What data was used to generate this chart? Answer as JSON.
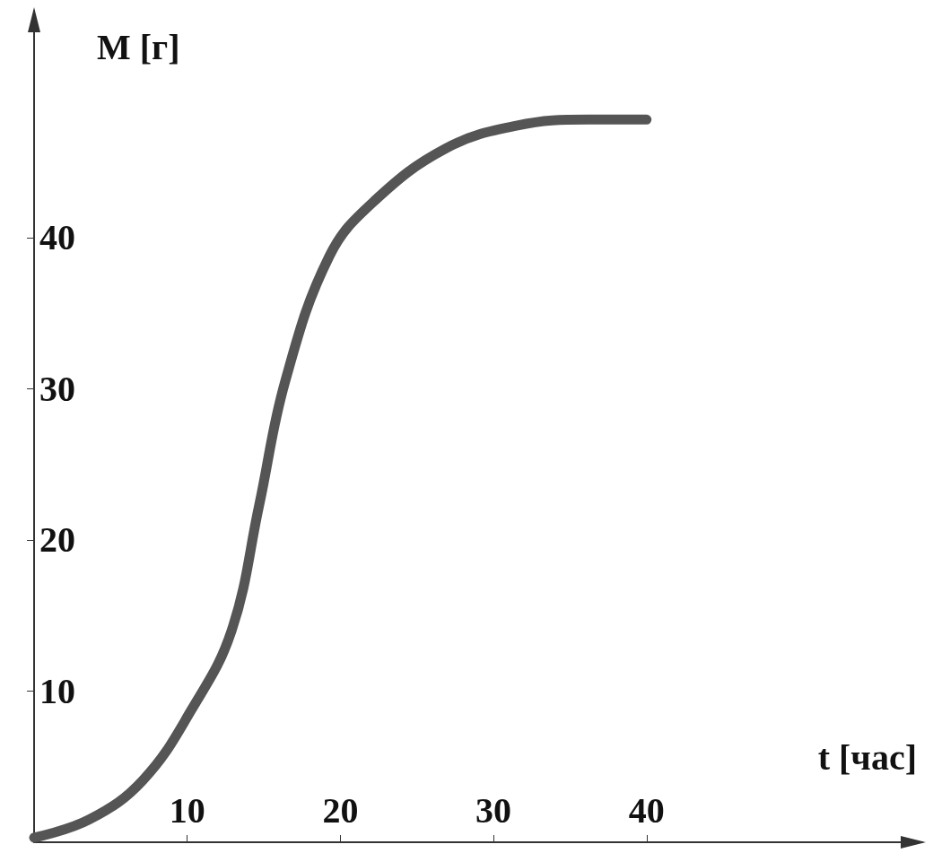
{
  "chart_data": {
    "type": "line",
    "xlabel": "t [час]",
    "ylabel": "M [г]",
    "x": [
      0,
      3.6,
      7.1,
      10.3,
      12.9,
      14.7,
      16.4,
      19.3,
      22.2,
      26.9,
      31.5,
      36.2,
      40
    ],
    "series": [
      {
        "color": "#555555",
        "values": [
          0.3,
          1.5,
          4.1,
          8.8,
          14,
          22.3,
          30.5,
          38.8,
          42.4,
          45.9,
          47.4,
          47.8,
          47.8
        ]
      }
    ],
    "xlim": [
      0,
      58
    ],
    "ylim": [
      0,
      55
    ],
    "xticks": [
      10,
      20,
      30,
      40
    ],
    "yticks": [
      10,
      20,
      30,
      40
    ],
    "line_style": "solid"
  }
}
